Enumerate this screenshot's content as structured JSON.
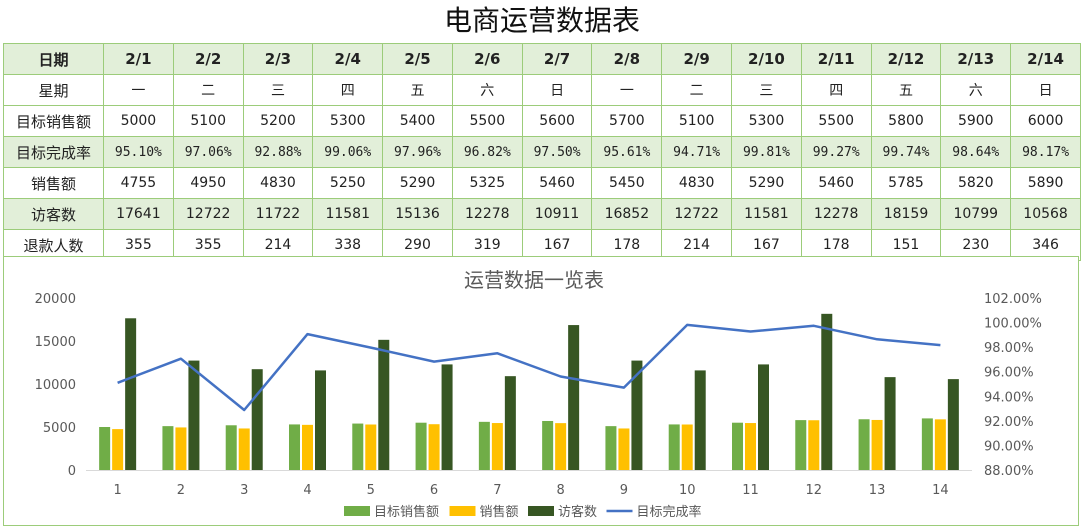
{
  "page_title": "电商运营数据表",
  "table": {
    "row_labels": {
      "date": "日期",
      "weekday": "星期",
      "target": "目标销售额",
      "rate": "目标完成率",
      "sales": "销售额",
      "visitors": "访客数",
      "refunds": "退款人数"
    },
    "dates": [
      "2/1",
      "2/2",
      "2/3",
      "2/4",
      "2/5",
      "2/6",
      "2/7",
      "2/8",
      "2/9",
      "2/10",
      "2/11",
      "2/12",
      "2/13",
      "2/14"
    ],
    "weekdays": [
      "一",
      "二",
      "三",
      "四",
      "五",
      "六",
      "日",
      "一",
      "二",
      "三",
      "四",
      "五",
      "六",
      "日"
    ],
    "target": [
      "5000",
      "5100",
      "5200",
      "5300",
      "5400",
      "5500",
      "5600",
      "5700",
      "5100",
      "5300",
      "5500",
      "5800",
      "5900",
      "6000"
    ],
    "rate": [
      "95.10%",
      "97.06%",
      "92.88%",
      "99.06%",
      "97.96%",
      "96.82%",
      "97.50%",
      "95.61%",
      "94.71%",
      "99.81%",
      "99.27%",
      "99.74%",
      "98.64%",
      "98.17%"
    ],
    "sales": [
      "4755",
      "4950",
      "4830",
      "5250",
      "5290",
      "5325",
      "5460",
      "5450",
      "4830",
      "5290",
      "5460",
      "5785",
      "5820",
      "5890"
    ],
    "visitors": [
      "17641",
      "12722",
      "11722",
      "11581",
      "15136",
      "12278",
      "10911",
      "16852",
      "12722",
      "11581",
      "12278",
      "18159",
      "10799",
      "10568"
    ],
    "refunds": [
      "355",
      "355",
      "214",
      "338",
      "290",
      "319",
      "167",
      "178",
      "214",
      "167",
      "178",
      "151",
      "230",
      "346"
    ]
  },
  "chart_data": {
    "type": "bar",
    "title": "运营数据一览表",
    "categories": [
      "1",
      "2",
      "3",
      "4",
      "5",
      "6",
      "7",
      "8",
      "9",
      "10",
      "11",
      "12",
      "13",
      "14"
    ],
    "series": [
      {
        "name": "目标销售额",
        "type": "bar",
        "color": "#70ad47",
        "axis": "left",
        "values": [
          5000,
          5100,
          5200,
          5300,
          5400,
          5500,
          5600,
          5700,
          5100,
          5300,
          5500,
          5800,
          5900,
          6000
        ]
      },
      {
        "name": "销售额",
        "type": "bar",
        "color": "#ffc000",
        "axis": "left",
        "values": [
          4755,
          4950,
          4830,
          5250,
          5290,
          5325,
          5460,
          5450,
          4830,
          5290,
          5460,
          5785,
          5820,
          5890
        ]
      },
      {
        "name": "访客数",
        "type": "bar",
        "color": "#375623",
        "axis": "left",
        "values": [
          17641,
          12722,
          11722,
          11581,
          15136,
          12278,
          10911,
          16852,
          12722,
          11581,
          12278,
          18159,
          10799,
          10568
        ]
      },
      {
        "name": "目标完成率",
        "type": "line",
        "color": "#4472c4",
        "axis": "right",
        "values": [
          95.1,
          97.06,
          92.88,
          99.06,
          97.96,
          96.82,
          97.5,
          95.61,
          94.71,
          99.81,
          99.27,
          99.74,
          98.64,
          98.17
        ]
      }
    ],
    "y_left": {
      "min": 0,
      "max": 20000,
      "ticks": [
        "0",
        "5000",
        "10000",
        "15000",
        "20000"
      ]
    },
    "y_right": {
      "min": 88,
      "max": 102,
      "ticks": [
        "88.00%",
        "90.00%",
        "92.00%",
        "94.00%",
        "96.00%",
        "98.00%",
        "100.00%",
        "102.00%"
      ]
    },
    "grid": false,
    "legend_position": "bottom"
  }
}
